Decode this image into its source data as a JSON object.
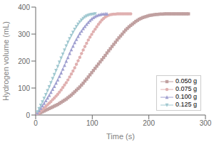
{
  "chart_data": {
    "type": "line",
    "title": "",
    "xlabel": "Time (s)",
    "ylabel": "Hydrogen volume (mL)",
    "xlim": [
      0,
      300
    ],
    "ylim": [
      0,
      400
    ],
    "xticks": [
      0,
      100,
      200,
      300
    ],
    "yticks": [
      0,
      100,
      200,
      300,
      400
    ],
    "grid": false,
    "legend": "lower right",
    "series": [
      {
        "name": "0.050 g",
        "color": "#c0a0a0",
        "marker": "square",
        "x": [
          3,
          6,
          9,
          12,
          15,
          18,
          21,
          24,
          27,
          30,
          33,
          36,
          39,
          42,
          45,
          48,
          51,
          54,
          57,
          60,
          63,
          66,
          69,
          72,
          75,
          78,
          81,
          84,
          87,
          90,
          93,
          96,
          99,
          102,
          105,
          108,
          111,
          114,
          117,
          120,
          123,
          126,
          129,
          132,
          135,
          138,
          141,
          144,
          147,
          150,
          153,
          156,
          159,
          162,
          165,
          168,
          171,
          174,
          177,
          180,
          183,
          186,
          189,
          192,
          195,
          198,
          201,
          204,
          207,
          210,
          213,
          216,
          219,
          222,
          225,
          228,
          231,
          234,
          237,
          240,
          243,
          246,
          249,
          252,
          255,
          258,
          261,
          264,
          267,
          270
        ],
        "values": [
          3,
          6,
          9,
          12,
          15,
          18,
          21,
          24,
          27,
          30,
          33,
          36,
          39,
          43,
          47,
          51,
          55,
          59,
          64,
          69,
          74,
          80,
          86,
          92,
          98,
          104,
          111,
          118,
          126,
          133,
          141,
          149,
          157,
          165,
          173,
          181,
          189,
          197,
          205,
          213,
          221,
          230,
          238,
          246,
          254,
          262,
          270,
          278,
          286,
          293,
          300,
          308,
          315,
          321,
          327,
          332,
          337,
          342,
          347,
          351,
          355,
          358,
          361,
          363,
          365,
          367,
          369,
          370,
          371,
          372,
          373,
          373,
          374,
          374,
          374,
          375,
          375,
          375,
          375,
          375,
          375,
          375,
          375,
          375,
          375,
          375,
          375,
          375,
          375,
          375
        ]
      },
      {
        "name": "0.075 g",
        "color": "#e0b0b0",
        "marker": "circle",
        "x": [
          3,
          6,
          9,
          12,
          15,
          18,
          21,
          24,
          27,
          30,
          33,
          36,
          39,
          42,
          45,
          48,
          51,
          54,
          57,
          60,
          63,
          66,
          69,
          72,
          75,
          78,
          81,
          84,
          87,
          90,
          93,
          96,
          99,
          102,
          105,
          108,
          111,
          114,
          117,
          120,
          123,
          126,
          129,
          132,
          135,
          138,
          141,
          144,
          147,
          150,
          153,
          156,
          159,
          162,
          165,
          168
        ],
        "values": [
          5,
          10,
          15,
          20,
          26,
          32,
          38,
          44,
          50,
          57,
          63,
          70,
          77,
          85,
          93,
          102,
          111,
          120,
          130,
          141,
          152,
          163,
          175,
          188,
          201,
          214,
          228,
          241,
          254,
          266,
          278,
          289,
          299,
          309,
          318,
          327,
          336,
          344,
          352,
          358,
          363,
          367,
          370,
          372,
          373,
          374,
          374,
          375,
          375,
          375,
          375,
          375,
          375,
          375,
          375,
          375
        ]
      },
      {
        "name": "0.100 g",
        "color": "#a0a0d0",
        "marker": "triangle_up",
        "x": [
          3,
          6,
          9,
          12,
          15,
          18,
          21,
          24,
          27,
          30,
          33,
          36,
          39,
          42,
          45,
          48,
          51,
          54,
          57,
          60,
          63,
          66,
          69,
          72,
          75,
          78,
          81,
          84,
          87,
          90,
          93,
          96,
          99,
          102,
          105,
          108,
          111,
          114,
          117,
          120,
          123,
          126
        ],
        "values": [
          8,
          16,
          25,
          34,
          43,
          53,
          63,
          73,
          84,
          95,
          106,
          118,
          130,
          143,
          156,
          170,
          184,
          199,
          213,
          228,
          242,
          255,
          268,
          280,
          291,
          302,
          311,
          320,
          328,
          336,
          343,
          350,
          356,
          361,
          365,
          368,
          371,
          372,
          374,
          374,
          375,
          375
        ]
      },
      {
        "name": "0.125 g",
        "color": "#a0c8d0",
        "marker": "triangle_down",
        "x": [
          3,
          6,
          9,
          12,
          15,
          18,
          21,
          24,
          27,
          30,
          33,
          36,
          39,
          42,
          45,
          48,
          51,
          54,
          57,
          60,
          63,
          66,
          69,
          72,
          75,
          78,
          81,
          84,
          87,
          90,
          93,
          96,
          99,
          102,
          105
        ],
        "values": [
          12,
          24,
          36,
          49,
          62,
          76,
          90,
          105,
          120,
          135,
          150,
          165,
          180,
          196,
          211,
          226,
          241,
          256,
          270,
          283,
          295,
          307,
          318,
          328,
          337,
          345,
          352,
          358,
          363,
          367,
          370,
          372,
          373,
          374,
          375
        ]
      }
    ]
  }
}
